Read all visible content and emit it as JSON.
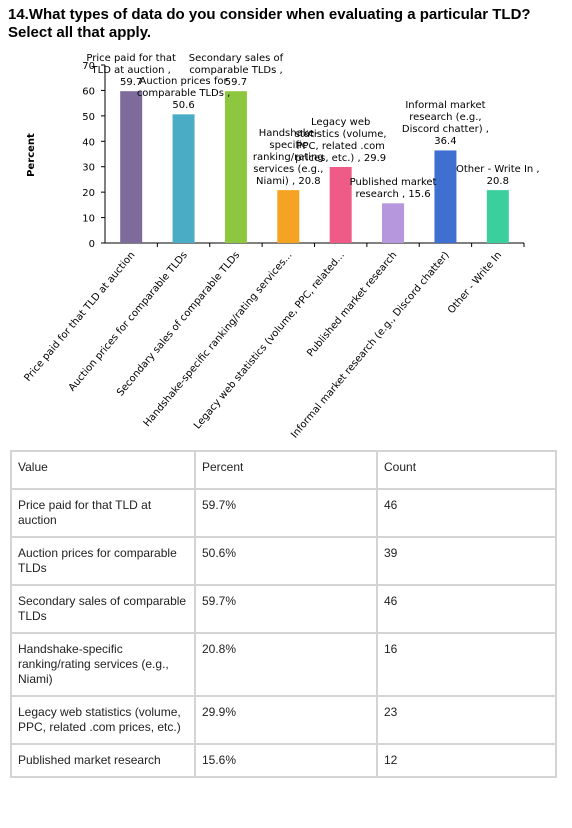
{
  "chart_data": {
    "type": "bar",
    "title": "14.What types of data do you consider when evaluating a particular TLD? Select all that apply.",
    "y_label": "Percent",
    "categories": [
      "Price paid for that TLD at auction",
      "Auction prices for comparable TLDs",
      "Secondary sales of comparable TLDs",
      "Handshake-specific ranking/rating services...",
      "Legacy web statistics (volume, PPC, related...",
      "Published market research",
      "Informal market research (e.g., Discord chatter)",
      "Other - Write In"
    ],
    "values": [
      59.7,
      50.6,
      59.7,
      20.8,
      29.9,
      15.6,
      36.4,
      20.8
    ],
    "value_labels": [
      "Price paid for that TLD at auction , 59.7",
      "Auction prices for comparable TLDs , 50.6",
      "Secondary sales of comparable TLDs , 59.7",
      "Handshake-specific ranking/rating services (e.g., Niami) , 20.8",
      "Legacy web statistics (volume, PPC, related .com prices, etc.) , 29.9",
      "Published market research , 15.6",
      "Informal market research (e.g., Discord chatter) , 36.4",
      "Other - Write In , 20.8"
    ],
    "colors": [
      "#7f6a9c",
      "#4bacc6",
      "#8dc63f",
      "#f4a422",
      "#ee5b87",
      "#b696dc",
      "#3f6fd1",
      "#3ccf9e"
    ],
    "ylim": [
      0,
      70
    ],
    "yticks": [
      0,
      10,
      20,
      30,
      40,
      50,
      60,
      70
    ]
  },
  "table": {
    "header": [
      "Value",
      "Percent",
      "Count"
    ],
    "rows": [
      [
        "Price paid for that TLD at auction",
        "59.7%",
        "46"
      ],
      [
        "Auction prices for comparable TLDs",
        "50.6%",
        "39"
      ],
      [
        "Secondary sales of comparable TLDs",
        "59.7%",
        "46"
      ],
      [
        "Handshake-specific ranking/rating services (e.g., Niami)",
        "20.8%",
        "16"
      ],
      [
        "Legacy web statistics (volume, PPC, related .com prices, etc.)",
        "29.9%",
        "23"
      ],
      [
        "Published market research",
        "15.6%",
        "12"
      ]
    ]
  }
}
